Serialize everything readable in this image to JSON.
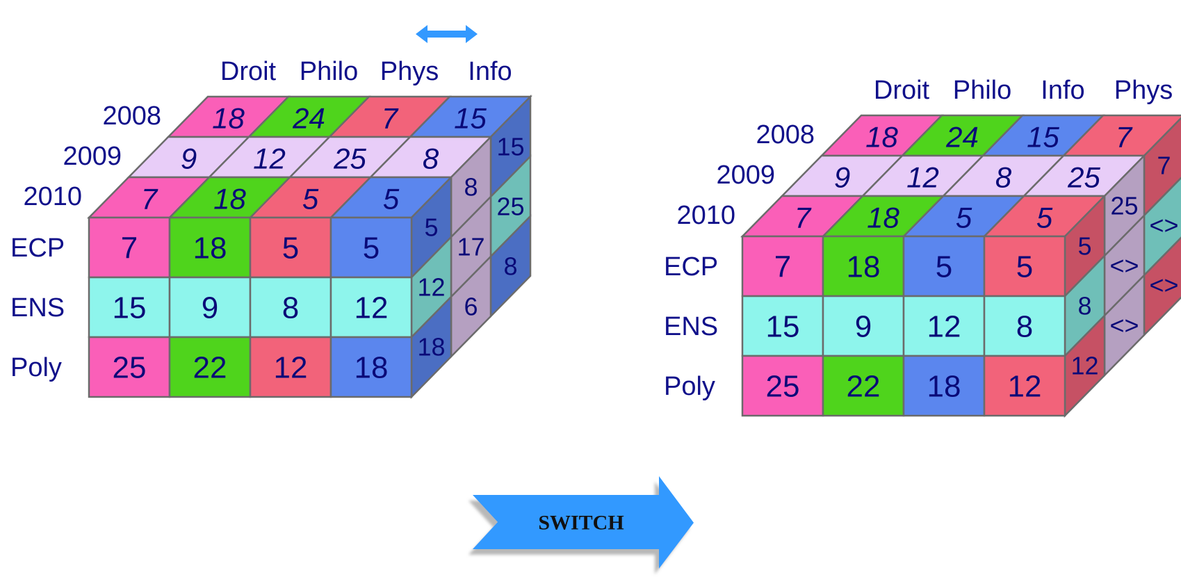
{
  "colors": {
    "text": "#10108a",
    "edge": "#6b6b6b",
    "droit": "#fa5fb8",
    "philo": "#4fd41c",
    "phys": "#f2637a",
    "info": "#5b86ee",
    "ens": "#8ef5ec",
    "year2009": "#e8cdf8",
    "switch": "#3399ff",
    "double_arrow": "#3399ff"
  },
  "cube_left": {
    "columns": [
      "Droit",
      "Philo",
      "Phys",
      "Info"
    ],
    "years": [
      "2008",
      "2009",
      "2010"
    ],
    "rows": [
      "ECP",
      "ENS",
      "Poly"
    ],
    "front": [
      [
        "7",
        "18",
        "5",
        "5"
      ],
      [
        "15",
        "9",
        "8",
        "12"
      ],
      [
        "25",
        "22",
        "12",
        "18"
      ]
    ],
    "top": [
      [
        "18",
        "24",
        "7",
        "15"
      ],
      [
        "9",
        "12",
        "25",
        "8"
      ],
      [
        "7",
        "18",
        "5",
        "5"
      ]
    ],
    "side": [
      [
        "15",
        "25",
        "8"
      ],
      [
        "8",
        "17",
        "6"
      ],
      [
        "5",
        "12",
        "18"
      ]
    ]
  },
  "cube_right": {
    "columns": [
      "Droit",
      "Philo",
      "Info",
      "Phys"
    ],
    "years": [
      "2008",
      "2009",
      "2010"
    ],
    "rows": [
      "ECP",
      "ENS",
      "Poly"
    ],
    "front": [
      [
        "7",
        "18",
        "5",
        "5"
      ],
      [
        "15",
        "9",
        "12",
        "8"
      ],
      [
        "25",
        "22",
        "18",
        "12"
      ]
    ],
    "top": [
      [
        "18",
        "24",
        "15",
        "7"
      ],
      [
        "9",
        "12",
        "8",
        "25"
      ],
      [
        "7",
        "18",
        "5",
        "5"
      ]
    ],
    "side": [
      [
        "7",
        "<>",
        "<>"
      ],
      [
        "25",
        "<>",
        "<>"
      ],
      [
        "5",
        "8",
        "12"
      ]
    ]
  },
  "swap_arrow": {
    "icon": "double-arrow-icon"
  },
  "switch_button": {
    "label": "SWITCH",
    "icon": "chevron-arrow-icon"
  }
}
